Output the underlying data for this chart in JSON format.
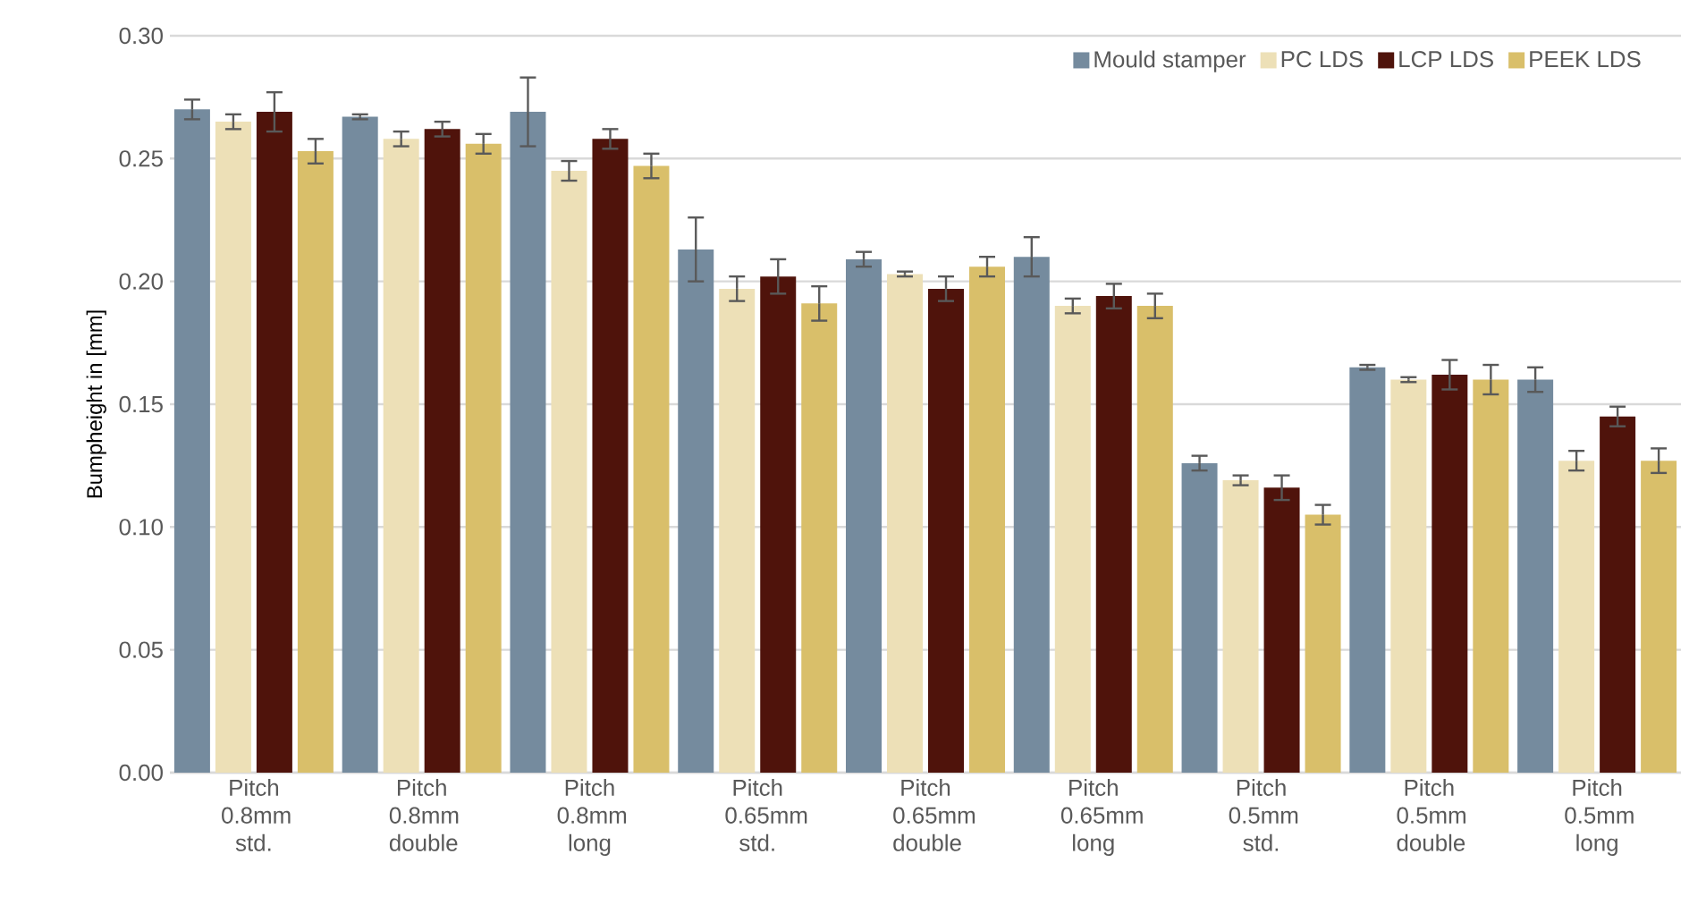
{
  "chart_data": {
    "type": "bar",
    "ylabel": "Bumpheight in [mm]",
    "categories": [
      "Pitch 0.8mm std.",
      "Pitch 0.8mm double",
      "Pitch 0.8mm long",
      "Pitch 0.65mm std.",
      "Pitch 0.65mm double",
      "Pitch 0.65mm long",
      "Pitch 0.5mm std.",
      "Pitch 0.5mm double",
      "Pitch 0.5mm long"
    ],
    "series": [
      {
        "name": "Mould stamper",
        "color": "#758b9e",
        "values": [
          0.27,
          0.267,
          0.269,
          0.213,
          0.209,
          0.21,
          0.126,
          0.165,
          0.16
        ],
        "errors": [
          0.004,
          0.001,
          0.014,
          0.013,
          0.003,
          0.008,
          0.003,
          0.001,
          0.005
        ]
      },
      {
        "name": "PC LDS",
        "color": "#ede0b7",
        "values": [
          0.265,
          0.258,
          0.245,
          0.197,
          0.203,
          0.19,
          0.119,
          0.16,
          0.127
        ],
        "errors": [
          0.003,
          0.003,
          0.004,
          0.005,
          0.001,
          0.003,
          0.002,
          0.001,
          0.004
        ]
      },
      {
        "name": "LCP LDS",
        "color": "#4f130b",
        "values": [
          0.269,
          0.262,
          0.258,
          0.202,
          0.197,
          0.194,
          0.116,
          0.162,
          0.145
        ],
        "errors": [
          0.008,
          0.003,
          0.004,
          0.007,
          0.005,
          0.005,
          0.005,
          0.006,
          0.004
        ]
      },
      {
        "name": "PEEK LDS",
        "color": "#d9bf6a",
        "values": [
          0.253,
          0.256,
          0.247,
          0.191,
          0.206,
          0.19,
          0.105,
          0.16,
          0.127
        ],
        "errors": [
          0.005,
          0.004,
          0.005,
          0.007,
          0.004,
          0.005,
          0.004,
          0.006,
          0.005
        ]
      }
    ],
    "ylim": [
      0,
      0.3
    ],
    "yticks": [
      {
        "value": 0,
        "label": "0.00"
      },
      {
        "value": 0.05,
        "label": "0.05"
      },
      {
        "value": 0.1,
        "label": "0.10"
      },
      {
        "value": 0.15,
        "label": "0.15"
      },
      {
        "value": 0.2,
        "label": "0.20"
      },
      {
        "value": 0.25,
        "label": "0.25"
      },
      {
        "value": 0.3,
        "label": "0.30"
      }
    ],
    "grid": "y",
    "legend": "top right"
  }
}
